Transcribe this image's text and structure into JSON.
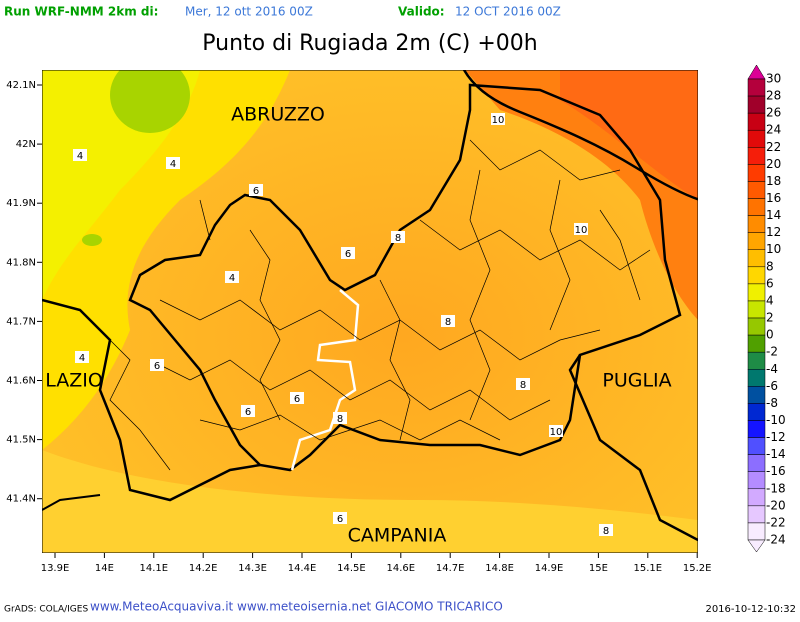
{
  "header": {
    "run": "Run WRF-NMM 2km di:",
    "run_date": "Mer, 12 ott 2016 00Z",
    "valid": "Valido:",
    "valid_date": "12 OCT 2016 00Z"
  },
  "title": "Punto di Rugiada 2m (C) +00h",
  "lon_ticks": [
    "13.9E",
    "14E",
    "14.1E",
    "14.2E",
    "14.3E",
    "14.4E",
    "14.5E",
    "14.6E",
    "14.7E",
    "14.8E",
    "14.9E",
    "15E",
    "15.1E",
    "15.2E"
  ],
  "lat_ticks": [
    "42.1N",
    "42N",
    "41.9N",
    "41.8N",
    "41.7N",
    "41.6N",
    "41.5N",
    "41.4N"
  ],
  "regions": [
    "ABRUZZO",
    "LAZIO",
    "PUGLIA",
    "CAMPANIA"
  ],
  "contour_labels": [
    10,
    4,
    4,
    6,
    8,
    10,
    6,
    4,
    8,
    4,
    6,
    8,
    6,
    6,
    8,
    10,
    6,
    8
  ],
  "colorbar": {
    "labels": [
      30,
      28,
      26,
      24,
      22,
      20,
      18,
      16,
      14,
      12,
      10,
      8,
      6,
      4,
      2,
      0,
      -2,
      -4,
      -6,
      -8,
      -10,
      -12,
      -14,
      -16,
      -18,
      -20,
      -22,
      -24
    ],
    "colors": [
      "#dc0096",
      "#b4003c",
      "#a0002a",
      "#c80014",
      "#e10a0a",
      "#f51e0a",
      "#ff3c00",
      "#ff5a00",
      "#ff7300",
      "#ff8c00",
      "#ffa500",
      "#ffbe00",
      "#ffd700",
      "#f0f000",
      "#c8e600",
      "#96c800",
      "#50a000",
      "#1e8c46",
      "#00786e",
      "#0050a0",
      "#0028d2",
      "#1414ff",
      "#5050ff",
      "#8c6eff",
      "#b48cff",
      "#d2aaff",
      "#e6c8ff",
      "#f8ecff"
    ]
  },
  "footer": {
    "left": "GrADS: COLA/IGES",
    "center": "www.MeteoAcquaviva.it www.meteoisernia.net GIACOMO TRICARICO",
    "right": "2016-10-12-10:32"
  }
}
